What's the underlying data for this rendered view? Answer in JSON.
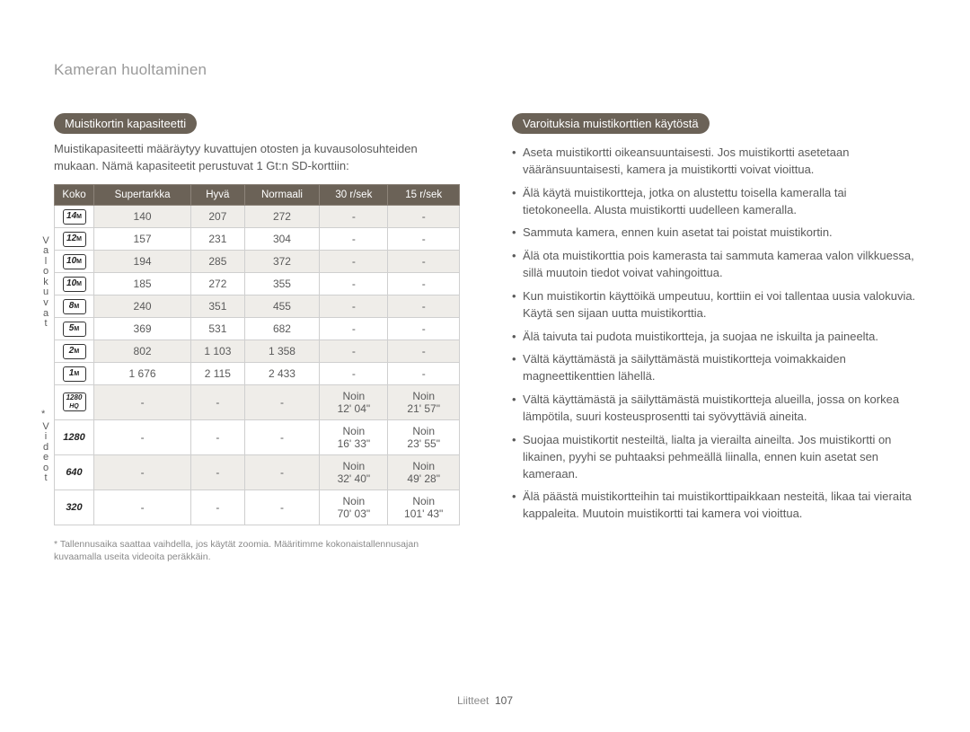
{
  "page_title": "Kameran huoltaminen",
  "footer": {
    "section": "Liitteet",
    "page": "107"
  },
  "left": {
    "heading": "Muistikortin kapasiteetti",
    "intro": "Muistikapasiteetti määräytyy kuvattujen otosten ja kuvausolosuhteiden mukaan. Nämä kapasiteetit perustuvat 1 Gt:n SD-korttiin:",
    "columns": [
      "Koko",
      "Supertarkka",
      "Hyvä",
      "Normaali",
      "30 r/sek",
      "15 r/sek"
    ],
    "vlabel1": "Valokuvat",
    "vlabel2": "Videot",
    "rows": [
      {
        "icon": "14m",
        "shade": true,
        "c": [
          "140",
          "207",
          "272",
          "-",
          "-"
        ]
      },
      {
        "icon": "12m_box",
        "shade": false,
        "c": [
          "157",
          "231",
          "304",
          "-",
          "-"
        ]
      },
      {
        "icon": "10m",
        "shade": true,
        "c": [
          "194",
          "285",
          "372",
          "-",
          "-"
        ]
      },
      {
        "icon": "10m_box",
        "shade": false,
        "c": [
          "185",
          "272",
          "355",
          "-",
          "-"
        ]
      },
      {
        "icon": "8m",
        "shade": true,
        "c": [
          "240",
          "351",
          "455",
          "-",
          "-"
        ]
      },
      {
        "icon": "5m",
        "shade": false,
        "c": [
          "369",
          "531",
          "682",
          "-",
          "-"
        ]
      },
      {
        "icon": "2m_box",
        "shade": true,
        "c": [
          "802",
          "1 103",
          "1 358",
          "-",
          "-"
        ]
      },
      {
        "icon": "1m",
        "shade": false,
        "c": [
          "1 676",
          "2 115",
          "2 433",
          "-",
          "-"
        ]
      },
      {
        "icon": "1280hq",
        "shade": true,
        "c": [
          "-",
          "-",
          "-",
          "Noin\n12' 04\"",
          "Noin\n21' 57\""
        ]
      },
      {
        "icon": "1280",
        "shade": false,
        "c": [
          "-",
          "-",
          "-",
          "Noin\n16' 33\"",
          "Noin\n23' 55\""
        ]
      },
      {
        "icon": "640",
        "shade": true,
        "c": [
          "-",
          "-",
          "-",
          "Noin\n32' 40\"",
          "Noin\n49' 28\""
        ]
      },
      {
        "icon": "320",
        "shade": false,
        "c": [
          "-",
          "-",
          "-",
          "Noin\n70' 03\"",
          "Noin\n101' 43\""
        ]
      }
    ],
    "footnote": "* Tallennusaika saattaa vaihdella, jos käytät zoomia. Määritimme kokonaistallennusajan kuvaamalla useita videoita peräkkäin."
  },
  "right": {
    "heading": "Varoituksia muistikorttien käytöstä",
    "bullets": [
      "Aseta muistikortti oikeansuuntaisesti. Jos muistikortti asetetaan vääränsuuntaisesti, kamera ja muistikortti voivat vioittua.",
      "Älä käytä muistikortteja, jotka on alustettu toisella kameralla tai tietokoneella. Alusta muistikortti uudelleen kameralla.",
      "Sammuta kamera, ennen kuin asetat tai poistat muistikortin.",
      "Älä ota muistikorttia pois kamerasta tai sammuta kameraa valon vilkkuessa, sillä muutoin tiedot voivat vahingoittua.",
      "Kun muistikortin käyttöikä umpeutuu, korttiin ei voi tallentaa uusia valokuvia. Käytä sen sijaan uutta muistikorttia.",
      "Älä taivuta tai pudota muistikortteja, ja suojaa ne iskuilta ja paineelta.",
      "Vältä käyttämästä ja säilyttämästä muistikortteja voimakkaiden magneettikenttien lähellä.",
      "Vältä käyttämästä ja säilyttämästä muistikortteja alueilla, jossa on korkea lämpötila, suuri kosteusprosentti tai syövyttäviä aineita.",
      "Suojaa muistikortit nesteiltä, lialta ja vierailta aineilta. Jos muistikortti on likainen, pyyhi se puhtaaksi pehmeällä liinalla, ennen kuin asetat sen kameraan.",
      "Älä päästä muistikortteihin tai muistikorttipaikkaan nesteitä, likaa tai vieraita kappaleita. Muutoin muistikortti tai kamera voi vioittua."
    ]
  },
  "colors": {
    "pill_bg": "#6b6257",
    "header_bg": "#6b6257",
    "shade_bg": "#efede9",
    "border": "#cfcfcf",
    "text": "#5a5a5a"
  }
}
